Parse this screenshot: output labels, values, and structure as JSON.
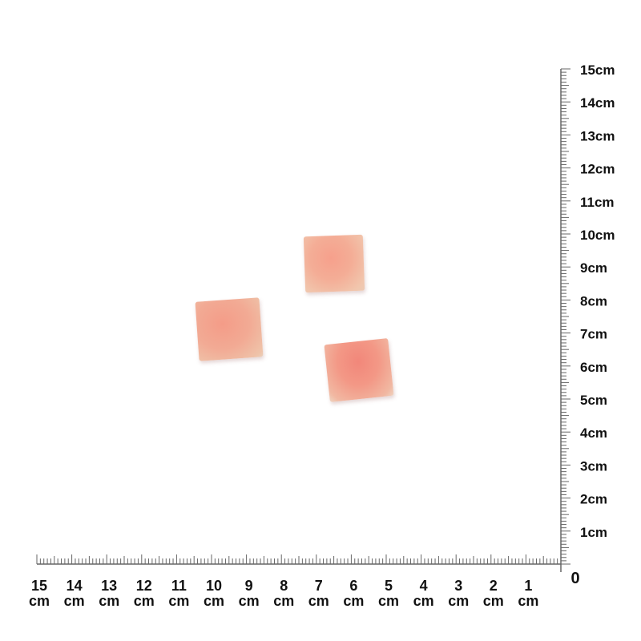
{
  "photo": {
    "subject": "meat-cubes",
    "piece_count": 3,
    "colors": {
      "meat": "#f4a08c",
      "fat": "#f3d9c6",
      "ruler": "#666666",
      "label": "#111111"
    }
  },
  "vertical_ruler": {
    "labels": [
      "1cm",
      "2cm",
      "3cm",
      "4cm",
      "5cm",
      "6cm",
      "7cm",
      "8cm",
      "9cm",
      "10cm",
      "11cm",
      "12cm",
      "13cm",
      "14cm",
      "15cm"
    ]
  },
  "horizontal_ruler": {
    "numbers": [
      "1",
      "2",
      "3",
      "4",
      "5",
      "6",
      "7",
      "8",
      "9",
      "10",
      "11",
      "12",
      "13",
      "14",
      "15"
    ],
    "unit": "cm",
    "origin": "0"
  }
}
